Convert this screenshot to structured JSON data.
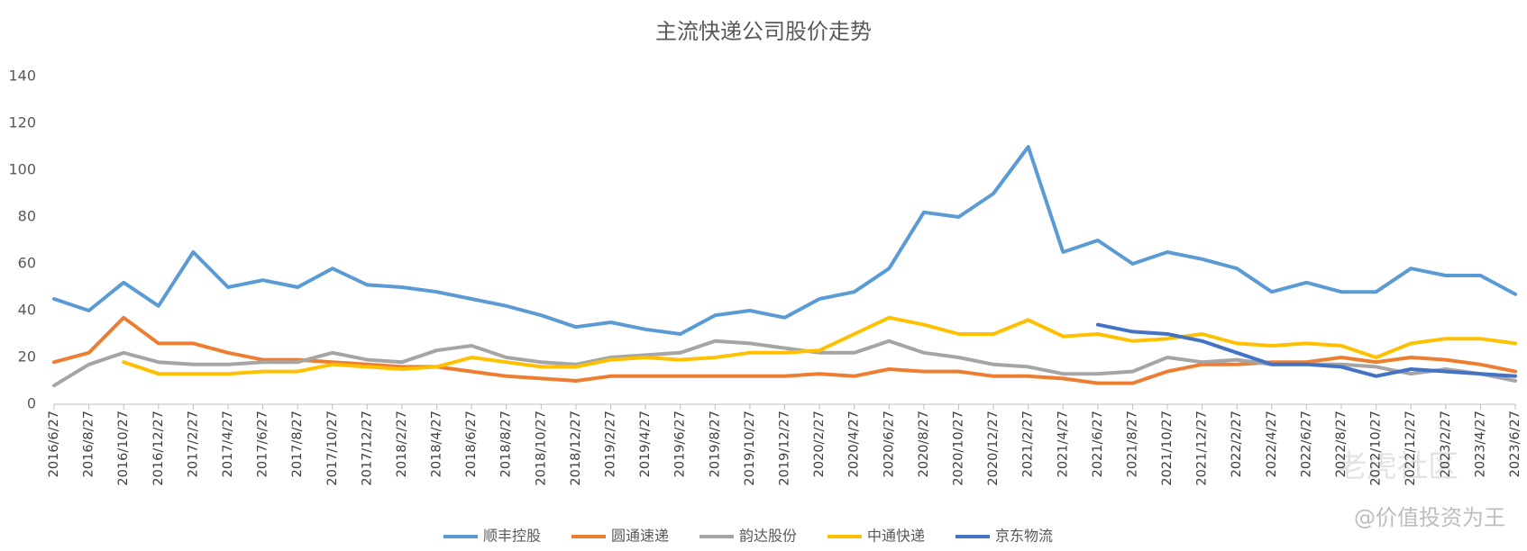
{
  "chart_data": {
    "type": "line",
    "title": "主流快递公司股价走势",
    "categories": [
      "2016/6/27",
      "2016/8/27",
      "2016/10/27",
      "2016/12/27",
      "2017/2/27",
      "2017/4/27",
      "2017/6/27",
      "2017/8/27",
      "2017/10/27",
      "2017/12/27",
      "2018/2/27",
      "2018/4/27",
      "2018/6/27",
      "2018/8/27",
      "2018/10/27",
      "2018/12/27",
      "2019/2/27",
      "2019/4/27",
      "2019/6/27",
      "2019/8/27",
      "2019/10/27",
      "2019/12/27",
      "2020/2/27",
      "2020/4/27",
      "2020/6/27",
      "2020/8/27",
      "2020/10/27",
      "2020/12/27",
      "2021/2/27",
      "2021/4/27",
      "2021/6/27",
      "2021/8/27",
      "2021/10/27",
      "2021/12/27",
      "2022/2/27",
      "2022/4/27",
      "2022/6/27",
      "2022/8/27",
      "2022/10/27",
      "2022/12/27",
      "2023/2/27",
      "2023/4/27",
      "2023/6/27"
    ],
    "series": [
      {
        "name": "顺丰控股",
        "color": "#5b9bd5",
        "values": [
          45,
          40,
          52,
          42,
          65,
          50,
          53,
          50,
          58,
          51,
          50,
          48,
          45,
          42,
          38,
          33,
          35,
          32,
          30,
          38,
          40,
          37,
          45,
          48,
          58,
          82,
          80,
          90,
          110,
          65,
          70,
          60,
          65,
          62,
          58,
          48,
          52,
          48,
          48,
          58,
          55,
          55,
          47
        ]
      },
      {
        "name": "圆通速递",
        "color": "#ed7d31",
        "values": [
          18,
          22,
          37,
          26,
          26,
          22,
          19,
          19,
          18,
          17,
          16,
          16,
          14,
          12,
          11,
          10,
          12,
          12,
          12,
          12,
          12,
          12,
          13,
          12,
          15,
          14,
          14,
          12,
          12,
          11,
          9,
          9,
          14,
          17,
          17,
          18,
          18,
          20,
          18,
          20,
          19,
          17,
          14
        ]
      },
      {
        "name": "韵达股份",
        "color": "#a5a5a5",
        "values": [
          8,
          17,
          22,
          18,
          17,
          17,
          18,
          18,
          22,
          19,
          18,
          23,
          25,
          20,
          18,
          17,
          20,
          21,
          22,
          27,
          26,
          24,
          22,
          22,
          27,
          22,
          20,
          17,
          16,
          13,
          13,
          14,
          20,
          18,
          19,
          17,
          17,
          17,
          16,
          13,
          15,
          13,
          10
        ]
      },
      {
        "name": "中通快递",
        "color": "#ffc000",
        "values": [
          null,
          null,
          18,
          13,
          13,
          13,
          14,
          14,
          17,
          16,
          15,
          16,
          20,
          18,
          16,
          16,
          19,
          20,
          19,
          20,
          22,
          22,
          23,
          30,
          37,
          34,
          30,
          30,
          36,
          29,
          30,
          27,
          28,
          30,
          26,
          25,
          26,
          25,
          20,
          26,
          28,
          28,
          26
        ]
      },
      {
        "name": "京东物流",
        "color": "#4472c4",
        "values": [
          null,
          null,
          null,
          null,
          null,
          null,
          null,
          null,
          null,
          null,
          null,
          null,
          null,
          null,
          null,
          null,
          null,
          null,
          null,
          null,
          null,
          null,
          null,
          null,
          null,
          null,
          null,
          null,
          null,
          null,
          34,
          31,
          30,
          27,
          22,
          17,
          17,
          16,
          12,
          15,
          14,
          13,
          12
        ]
      }
    ],
    "ylim": [
      0,
      140
    ],
    "yticks": [
      0,
      20,
      40,
      60,
      80,
      100,
      120,
      140
    ],
    "grid": false,
    "legend": "bottom",
    "annotations": [
      "老虎社区",
      "@价值投资为王"
    ]
  }
}
